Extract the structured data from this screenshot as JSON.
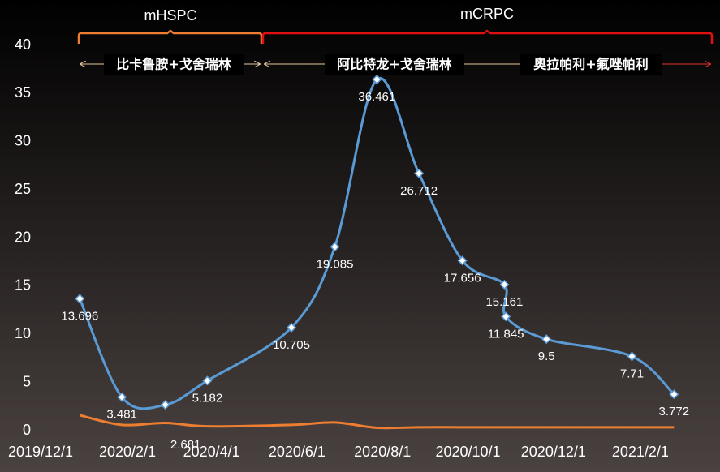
{
  "chart_data": {
    "type": "line",
    "annotations": {
      "phase1": "mHSPC",
      "phase2": "mCRPC",
      "regimen1": "比卡鲁胺+戈舍瑞林",
      "regimen2": "阿比特龙+戈舍瑞林",
      "regimen3": "奥拉帕利+氟唑帕利"
    },
    "x": [
      "2019/12/29",
      "2020/1/28",
      "2020/2/28",
      "2020/3/29",
      "2020/5/28",
      "2020/6/28",
      "2020/7/28",
      "2020/8/27",
      "2020/9/27",
      "2020/10/27",
      "2020/10/28",
      "2020/11/26",
      "2021/1/26",
      "2021/2/25"
    ],
    "series": [
      {
        "color": "#5b9bd5",
        "values": [
          13.696,
          3.481,
          2.681,
          5.182,
          10.705,
          19.085,
          36.461,
          26.712,
          17.656,
          15.161,
          11.845,
          9.5,
          7.71,
          3.772
        ]
      },
      {
        "color": "#ed7d31",
        "values": [
          1.6,
          0.6,
          0.8,
          0.45,
          0.6,
          0.85,
          0.3,
          0.35,
          0.35,
          0.35,
          0.35,
          0.35,
          0.35,
          0.35
        ]
      }
    ],
    "xlim": [
      "2019/12/1",
      "2021/3/20"
    ],
    "xticks": [
      "2019/12/1",
      "2020/2/1",
      "2020/4/1",
      "2020/6/1",
      "2020/8/1",
      "2020/10/1",
      "2020/12/1",
      "2021/2/1"
    ],
    "ylim": [
      0,
      40
    ],
    "yticks": [
      0,
      5,
      10,
      15,
      20,
      25,
      30,
      35,
      40
    ],
    "grid": false
  }
}
